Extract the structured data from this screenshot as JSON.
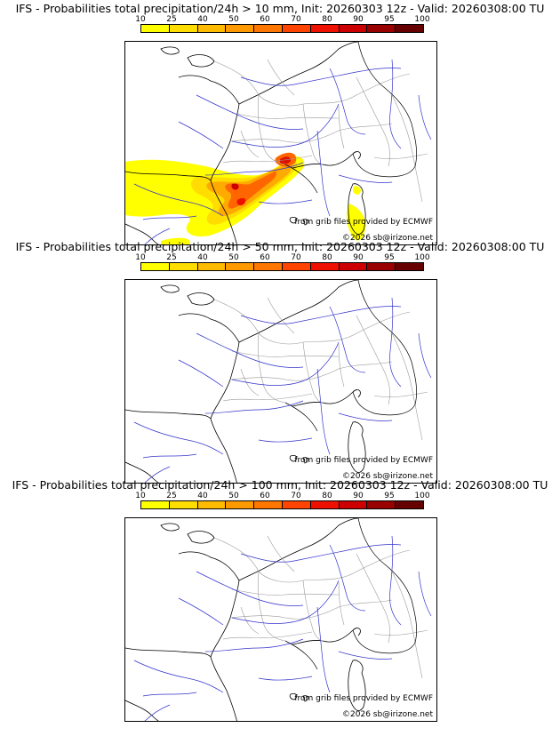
{
  "panels": [
    {
      "title": "IFS - Probabilities total precipitation/24h > 10 mm, Init: 20260303 12z - Valid: 20260308:00 TU",
      "threshold_mm": 10,
      "has_precip": true
    },
    {
      "title": "IFS - Probabilities total precipitation/24h > 50 mm, Init: 20260303 12z - Valid: 20260308:00 TU",
      "threshold_mm": 50,
      "has_precip": false
    },
    {
      "title": "IFS - Probabilities total precipitation/24h > 100 mm, Init: 20260303 12z - Valid: 20260308:00 TU",
      "threshold_mm": 100,
      "has_precip": false
    }
  ],
  "legend": {
    "ticks": [
      "10",
      "25",
      "40",
      "50",
      "60",
      "70",
      "80",
      "90",
      "95",
      "100"
    ],
    "colors": [
      "#ffff00",
      "#ffdd00",
      "#ffbb00",
      "#ff9900",
      "#ff7700",
      "#ff4400",
      "#ee1100",
      "#cc0000",
      "#990000",
      "#660000"
    ]
  },
  "credits": {
    "source": "from grib files provided by ECMWF",
    "copyright": "©2026 sb@irizone.net"
  },
  "map_colors": {
    "coast": "#000000",
    "borders": "#999999",
    "rivers": "#3333cc"
  }
}
